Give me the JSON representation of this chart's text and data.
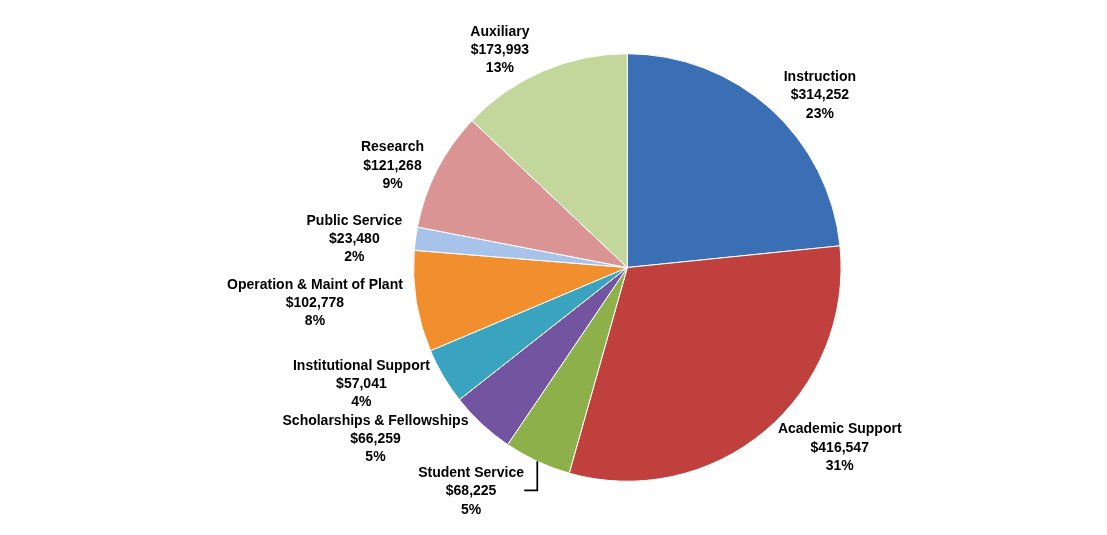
{
  "chart_data": {
    "type": "pie",
    "categories": [
      "Instruction",
      "Academic Support",
      "Student Service",
      "Scholarships & Fellowships",
      "Institutional Support",
      "Operation & Maint of Plant",
      "Public Service",
      "Research",
      "Auxiliary"
    ],
    "values": [
      314252,
      416547,
      68225,
      66259,
      57041,
      102778,
      23480,
      121268,
      173993
    ],
    "value_labels": [
      "$314,252\n23%",
      "$416,547\n31%",
      "$68,225\n5%",
      "$66,259\n5%",
      "$57,041\n4%",
      "$102,778\n8%",
      "$23,480\n2%",
      "$121,268\n9%",
      "$173,993\n13%"
    ],
    "colors": [
      "#3a6fb5",
      "#c0403d",
      "#8db04a",
      "#7254a0",
      "#3aa3bf",
      "#f18f2e",
      "#a8c3ea",
      "#d99493",
      "#c3d69b"
    ],
    "legend": false
  }
}
